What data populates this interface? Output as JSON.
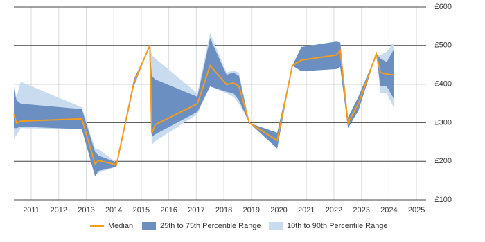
{
  "chart_data": {
    "type": "band-line",
    "x": [
      2010.37,
      2010.47,
      2010.62,
      2012.84,
      2013.32,
      2013.44,
      2014.1,
      2014.73,
      2015.31,
      2015.38,
      2015.51,
      2017.04,
      2017.5,
      2018.1,
      2018.35,
      2018.55,
      2018.93,
      2019.94,
      2020.49,
      2020.82,
      2022.08,
      2022.23,
      2022.51,
      2022.89,
      2023.54,
      2023.69,
      2023.92,
      2024.17
    ],
    "series": [
      {
        "name": "Median",
        "color": "#f39c1e",
        "values": [
          322,
          299,
          304,
          310,
          193,
          202,
          191,
          403,
          500,
          272,
          295,
          349,
          448,
          399,
          403,
          394,
          299,
          254,
          448,
          462,
          475,
          487,
          299,
          349,
          478,
          430,
          426,
          424
        ]
      },
      {
        "name": "25th to 75th Percentile Range",
        "color": "#6a8fc0",
        "low": [
          286,
          286,
          290,
          283,
          161,
          175,
          186,
          394,
          500,
          263,
          270,
          328,
          394,
          380,
          376,
          358,
          299,
          233,
          448,
          433,
          439,
          444,
          286,
          331,
          478,
          394,
          394,
          363
        ],
        "high": [
          385,
          358,
          349,
          335,
          224,
          215,
          197,
          412,
          500,
          421,
          412,
          367,
          519,
          424,
          430,
          421,
          299,
          274,
          448,
          496,
          510,
          508,
          313,
          367,
          478,
          466,
          457,
          489
        ]
      },
      {
        "name": "10th to 90th Percentile Range",
        "color": "#c8dbef",
        "low": [
          260,
          268,
          286,
          283,
          166,
          170,
          186,
          394,
          500,
          242,
          252,
          322,
          394,
          376,
          367,
          349,
          299,
          233,
          448,
          433,
          439,
          444,
          286,
          331,
          478,
          376,
          376,
          340
        ],
        "high": [
          394,
          367,
          406,
          340,
          233,
          231,
          197,
          412,
          500,
          475,
          466,
          376,
          532,
          430,
          435,
          430,
          299,
          274,
          448,
          496,
          510,
          508,
          313,
          367,
          478,
          475,
          484,
          507
        ]
      }
    ],
    "xlim": [
      2010.37,
      2025.35
    ],
    "xticks": [
      2011,
      2012,
      2013,
      2014,
      2015,
      2016,
      2017,
      2018,
      2019,
      2020,
      2021,
      2022,
      2023,
      2024,
      2025
    ],
    "ylim": [
      100,
      600
    ],
    "yticks": [
      {
        "value": 100,
        "label": "£100"
      },
      {
        "value": 200,
        "label": "£200"
      },
      {
        "value": 300,
        "label": "£300"
      },
      {
        "value": 400,
        "label": "£400"
      },
      {
        "value": 500,
        "label": "£500"
      },
      {
        "value": 600,
        "label": "£600"
      }
    ],
    "grid": true,
    "legend": "bottom"
  }
}
